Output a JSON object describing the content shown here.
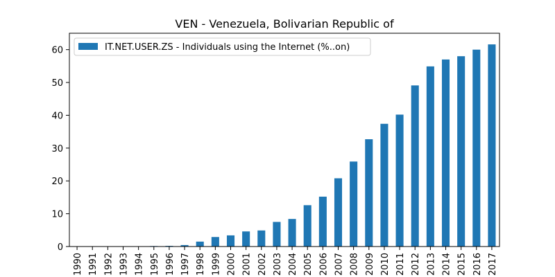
{
  "chart_data": {
    "type": "bar",
    "title": "VEN - Venezuela, Bolivarian Republic of",
    "xlabel": "",
    "ylabel": "",
    "categories": [
      "1990",
      "1991",
      "1992",
      "1993",
      "1994",
      "1995",
      "1996",
      "1997",
      "1998",
      "1999",
      "2000",
      "2001",
      "2002",
      "2003",
      "2004",
      "2005",
      "2006",
      "2007",
      "2008",
      "2009",
      "2010",
      "2011",
      "2012",
      "2013",
      "2014",
      "2015",
      "2016",
      "2017"
    ],
    "series": [
      {
        "name": "IT.NET.USER.ZS - Individuals using the Internet (%..on)",
        "color": "#1f77b4",
        "values": [
          0,
          0,
          0,
          0,
          0.02,
          0.15,
          0.2,
          0.45,
          1.5,
          2.9,
          3.4,
          4.6,
          4.9,
          7.5,
          8.4,
          12.6,
          15.2,
          20.8,
          25.9,
          32.7,
          37.4,
          40.2,
          49.1,
          54.9,
          57.0,
          58.0,
          60.0,
          61.6
        ]
      }
    ],
    "ylim": [
      0,
      65
    ],
    "yticks": [
      0,
      10,
      20,
      30,
      40,
      50,
      60
    ],
    "grid": false,
    "legend_position": "top-left"
  }
}
